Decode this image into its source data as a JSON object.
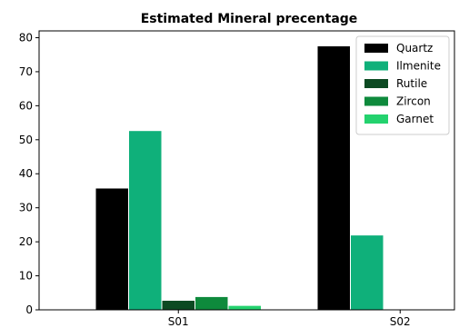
{
  "chart_data": {
    "type": "bar",
    "title": "Estimated Mineral precentage",
    "xlabel": "",
    "ylabel": "",
    "categories": [
      "S01",
      "S02"
    ],
    "series": [
      {
        "name": "Quartz",
        "values": [
          35.8,
          77.6
        ],
        "color": "#000000"
      },
      {
        "name": "Ilmenite",
        "values": [
          52.7,
          22.0
        ],
        "color": "#0fb07a"
      },
      {
        "name": "Rutile",
        "values": [
          2.8,
          0
        ],
        "color": "#0c4a22"
      },
      {
        "name": "Zircon",
        "values": [
          3.9,
          0
        ],
        "color": "#0e8a3c"
      },
      {
        "name": "Garnet",
        "values": [
          1.3,
          0
        ],
        "color": "#24d26e"
      }
    ],
    "ylim": [
      0,
      82
    ],
    "yticks": [
      0,
      10,
      20,
      30,
      40,
      50,
      60,
      70,
      80
    ],
    "grid": false,
    "legend_position": "top-right"
  }
}
